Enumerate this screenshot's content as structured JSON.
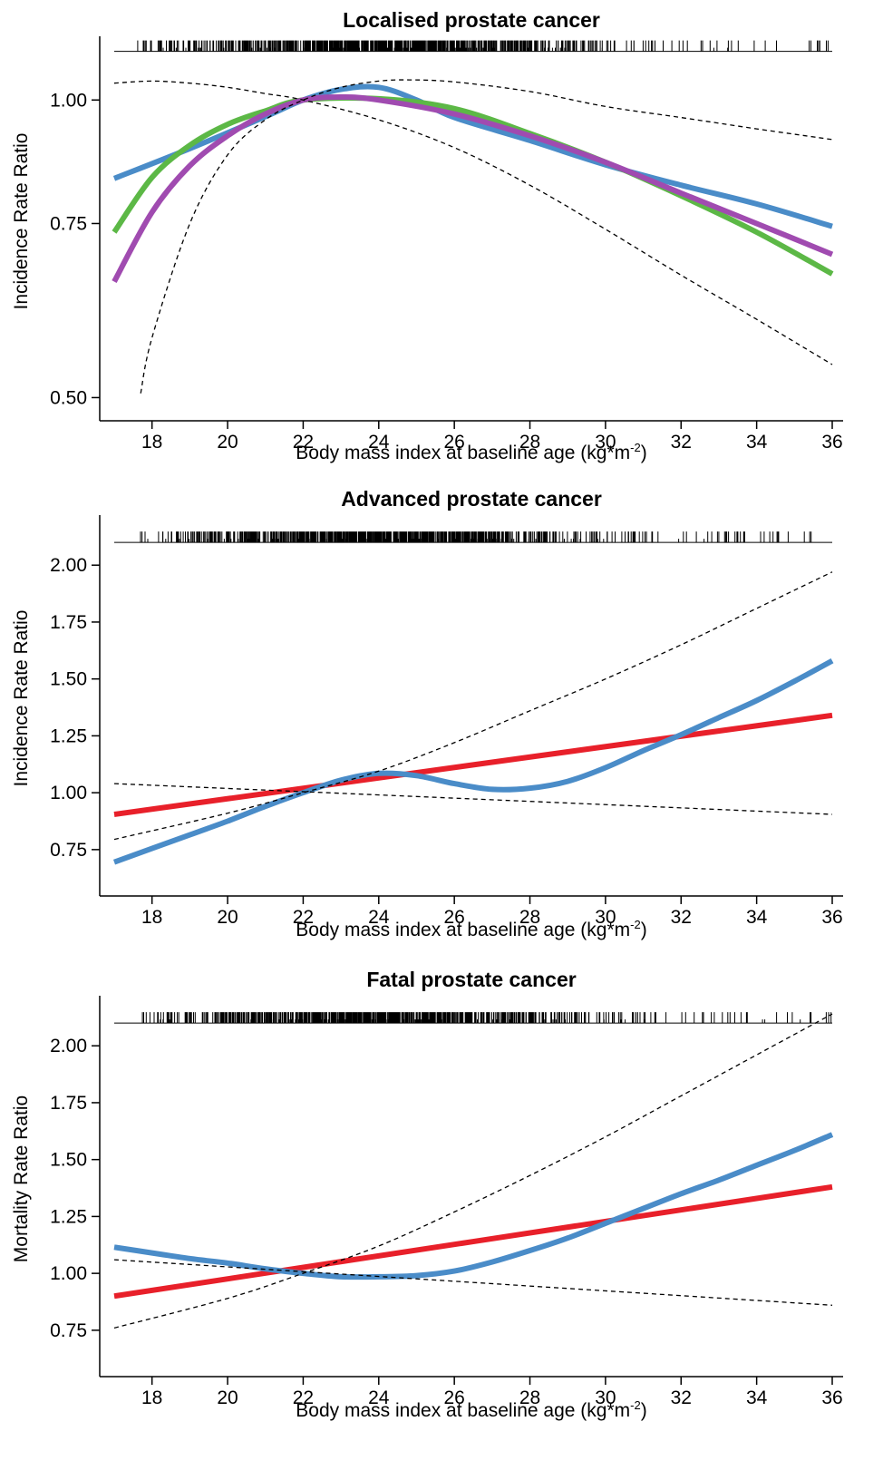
{
  "colors": {
    "blue": "#4a8cc8",
    "green": "#5cb846",
    "purple": "#a04bb0",
    "red": "#e8202a",
    "ci": "#000000"
  },
  "chart_data": [
    {
      "type": "line",
      "title": "Localised prostate cancer",
      "xlabel": "Body mass index at baseline age (kg*m",
      "xlabel_sup": "-2",
      "xlabel_end": ")",
      "ylabel": "Incidence Rate Ratio",
      "y_scale": "log",
      "xlim": [
        17,
        36
      ],
      "ylim": [
        0.49,
        1.16
      ],
      "xticks": [
        18,
        20,
        22,
        24,
        26,
        28,
        30,
        32,
        34,
        36
      ],
      "xtick_labels": [
        "18",
        "20",
        "22",
        "24",
        "26",
        "28",
        "30",
        "32",
        "34",
        "36"
      ],
      "yticks": [
        0.5,
        0.75,
        1.0
      ],
      "ytick_labels": [
        "0.50",
        "0.75",
        "1.00"
      ],
      "rug_y": 1.12,
      "series": [
        {
          "color": "blue",
          "x": [
            17,
            19,
            21,
            22,
            23,
            24,
            25,
            26,
            28,
            30,
            32,
            34,
            36
          ],
          "y": [
            0.833,
            0.893,
            0.962,
            1.0,
            1.025,
            1.03,
            1.0,
            0.96,
            0.91,
            0.86,
            0.82,
            0.785,
            0.745
          ]
        },
        {
          "color": "green",
          "x": [
            17,
            18,
            19,
            20,
            21,
            22,
            24,
            26,
            28,
            30,
            32,
            34,
            36
          ],
          "y": [
            0.735,
            0.835,
            0.9,
            0.945,
            0.975,
            1.0,
            1.003,
            0.98,
            0.925,
            0.865,
            0.8,
            0.735,
            0.667
          ]
        },
        {
          "color": "purple",
          "x": [
            17,
            18,
            19,
            20,
            21,
            22,
            23,
            24,
            26,
            28,
            30,
            32,
            34,
            36
          ],
          "y": [
            0.655,
            0.77,
            0.858,
            0.92,
            0.968,
            1.0,
            1.007,
            1.0,
            0.968,
            0.92,
            0.865,
            0.805,
            0.75,
            0.698
          ]
        },
        {
          "color": "ci",
          "dash": true,
          "x": [
            17.7,
            18,
            19,
            20,
            21,
            22,
            23,
            24,
            24.8,
            26,
            28,
            30,
            32,
            34,
            36
          ],
          "y": [
            0.505,
            0.575,
            0.75,
            0.88,
            0.955,
            1.0,
            1.03,
            1.045,
            1.048,
            1.043,
            1.02,
            0.985,
            0.96,
            0.935,
            0.912
          ]
        },
        {
          "color": "ci",
          "dash": true,
          "x": [
            17,
            18,
            19,
            20,
            21,
            22,
            24,
            26,
            28,
            30,
            32,
            34,
            36
          ],
          "y": [
            1.04,
            1.045,
            1.04,
            1.03,
            1.015,
            1.0,
            0.955,
            0.895,
            0.82,
            0.74,
            0.665,
            0.6,
            0.54
          ]
        }
      ]
    },
    {
      "type": "line",
      "title": "Advanced prostate cancer",
      "xlabel": "Body mass index at baseline age (kg*m",
      "xlabel_sup": "-2",
      "xlabel_end": ")",
      "ylabel": "Incidence Rate Ratio",
      "y_scale": "linear",
      "xlim": [
        17,
        36
      ],
      "ylim": [
        0.61,
        2.22
      ],
      "xticks": [
        18,
        20,
        22,
        24,
        26,
        28,
        30,
        32,
        34,
        36
      ],
      "xtick_labels": [
        "18",
        "20",
        "22",
        "24",
        "26",
        "28",
        "30",
        "32",
        "34",
        "36"
      ],
      "yticks": [
        0.75,
        1.0,
        1.25,
        1.5,
        1.75,
        2.0
      ],
      "ytick_labels": [
        "0.75",
        "1.00",
        "1.25",
        "1.50",
        "1.75",
        "2.00"
      ],
      "rug_y": 2.1,
      "series": [
        {
          "color": "red",
          "x": [
            17,
            36
          ],
          "y": [
            0.905,
            1.34
          ]
        },
        {
          "color": "blue",
          "x": [
            17,
            18,
            19,
            20,
            21,
            22,
            23,
            24,
            25,
            26,
            27,
            28,
            29,
            30,
            31,
            32,
            33,
            34,
            35,
            36
          ],
          "y": [
            0.695,
            0.755,
            0.815,
            0.875,
            0.94,
            1.0,
            1.055,
            1.085,
            1.075,
            1.04,
            1.015,
            1.02,
            1.05,
            1.11,
            1.185,
            1.255,
            1.33,
            1.405,
            1.49,
            1.58
          ]
        },
        {
          "color": "ci",
          "dash": true,
          "x": [
            17,
            36
          ],
          "y": [
            1.04,
            0.905
          ]
        },
        {
          "color": "ci",
          "dash": true,
          "x": [
            17,
            20,
            22,
            24,
            26,
            28,
            30,
            32,
            34,
            36
          ],
          "y": [
            0.795,
            0.91,
            1.0,
            1.095,
            1.22,
            1.36,
            1.5,
            1.65,
            1.81,
            1.97
          ]
        }
      ]
    },
    {
      "type": "line",
      "title": "Fatal prostate cancer",
      "xlabel": "Body mass index at baseline age (kg*m",
      "xlabel_sup": "-2",
      "xlabel_end": ")",
      "ylabel": "Mortality Rate Ratio",
      "y_scale": "linear",
      "xlim": [
        17,
        36
      ],
      "ylim": [
        0.61,
        2.22
      ],
      "xticks": [
        18,
        20,
        22,
        24,
        26,
        28,
        30,
        32,
        34,
        36
      ],
      "xtick_labels": [
        "18",
        "20",
        "22",
        "24",
        "26",
        "28",
        "30",
        "32",
        "34",
        "36"
      ],
      "yticks": [
        0.75,
        1.0,
        1.25,
        1.5,
        1.75,
        2.0
      ],
      "ytick_labels": [
        "0.75",
        "1.00",
        "1.25",
        "1.50",
        "1.75",
        "2.00"
      ],
      "rug_y": 2.1,
      "series": [
        {
          "color": "red",
          "x": [
            17,
            36
          ],
          "y": [
            0.9,
            1.38
          ]
        },
        {
          "color": "blue",
          "x": [
            17,
            18,
            19,
            20,
            21,
            22,
            23,
            24,
            25,
            26,
            27,
            28,
            29,
            30,
            31,
            32,
            33,
            34,
            35,
            36
          ],
          "y": [
            1.115,
            1.09,
            1.065,
            1.045,
            1.02,
            1.0,
            0.985,
            0.985,
            0.99,
            1.01,
            1.05,
            1.1,
            1.155,
            1.22,
            1.285,
            1.35,
            1.41,
            1.475,
            1.54,
            1.61
          ]
        },
        {
          "color": "ci",
          "dash": true,
          "x": [
            17,
            36
          ],
          "y": [
            1.06,
            0.86
          ]
        },
        {
          "color": "ci",
          "dash": true,
          "x": [
            17,
            20,
            22,
            24,
            26,
            28,
            30,
            32,
            34,
            36
          ],
          "y": [
            0.76,
            0.89,
            1.0,
            1.12,
            1.27,
            1.43,
            1.6,
            1.78,
            1.96,
            2.14
          ]
        }
      ]
    }
  ]
}
